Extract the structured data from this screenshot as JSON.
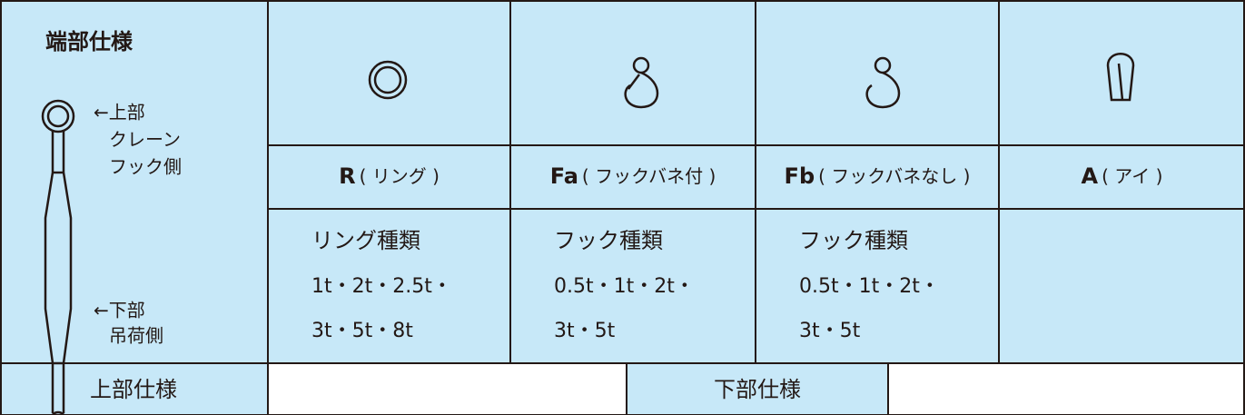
{
  "header": {
    "title": "端部仕様",
    "upper_note": [
      "←上部",
      "クレーン",
      "フック側"
    ],
    "lower_note": [
      "←下部",
      "吊荷側"
    ]
  },
  "columns": [
    {
      "code": "R",
      "name": "( リング )",
      "spec_title": "リング種類",
      "spec_lines": [
        "1t・2t・2.5t・",
        "3t・5t・8t"
      ]
    },
    {
      "code": "Fa",
      "name": "( フックバネ付 )",
      "spec_title": "フック種類",
      "spec_lines": [
        "0.5t・1t・2t・",
        "3t・5t"
      ]
    },
    {
      "code": "Fb",
      "name": "( フックバネなし )",
      "spec_title": "フック種類",
      "spec_lines": [
        "0.5t・1t・2t・",
        "3t・5t"
      ]
    },
    {
      "code": "A",
      "name": "( アイ )"
    }
  ],
  "footer": {
    "upper": "上部仕様",
    "lower": "下部仕様"
  }
}
